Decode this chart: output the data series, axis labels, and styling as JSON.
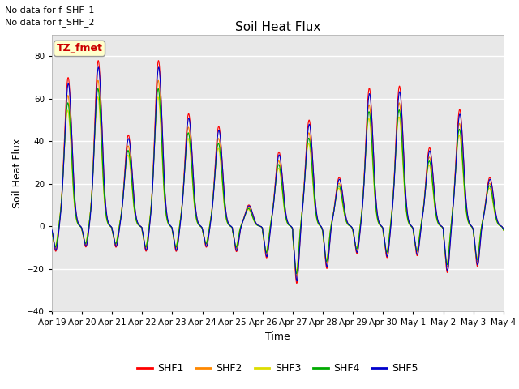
{
  "title": "Soil Heat Flux",
  "ylabel": "Soil Heat Flux",
  "xlabel": "Time",
  "text_upper_left": [
    "No data for f_SHF_1",
    "No data for f_SHF_2"
  ],
  "annotation_box": "TZ_fmet",
  "annotation_box_color": "#ffffcc",
  "annotation_box_edge": "#999999",
  "annotation_text_color": "#cc0000",
  "ylim": [
    -40,
    90
  ],
  "yticks": [
    -40,
    -20,
    0,
    20,
    40,
    60,
    80
  ],
  "bg_color": "#e8e8e8",
  "series_colors": [
    "#ff0000",
    "#ff8800",
    "#dddd00",
    "#00aa00",
    "#0000cc"
  ],
  "series_names": [
    "SHF1",
    "SHF2",
    "SHF3",
    "SHF4",
    "SHF5"
  ],
  "n_days": 15,
  "tick_labels": [
    "Apr 19",
    "Apr 20",
    "Apr 21",
    "Apr 22",
    "Apr 23",
    "Apr 24",
    "Apr 25",
    "Apr 26",
    "Apr 27",
    "Apr 28",
    "Apr 29",
    "Apr 30",
    "May 1",
    "May 2",
    "May 3",
    "May 4"
  ]
}
